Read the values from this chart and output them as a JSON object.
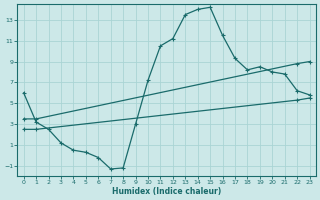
{
  "xlabel": "Humidex (Indice chaleur)",
  "bg_color": "#cce8e8",
  "line_color": "#1a6b6b",
  "grid_color": "#aad4d4",
  "xlim": [
    -0.5,
    23.5
  ],
  "ylim": [
    -2.0,
    14.5
  ],
  "xticks": [
    0,
    1,
    2,
    3,
    4,
    5,
    6,
    7,
    8,
    9,
    10,
    11,
    12,
    13,
    14,
    15,
    16,
    17,
    18,
    19,
    20,
    21,
    22,
    23
  ],
  "yticks": [
    -1,
    1,
    3,
    5,
    7,
    9,
    11,
    13
  ],
  "line1_x": [
    0,
    1,
    2,
    3,
    4,
    5,
    6,
    7,
    8,
    9,
    10,
    11,
    12,
    13,
    14,
    15,
    16,
    17,
    18,
    19,
    20,
    21,
    22,
    23
  ],
  "line1_y": [
    6.0,
    3.2,
    2.5,
    1.2,
    0.5,
    0.3,
    -0.2,
    -1.3,
    -1.2,
    3.0,
    7.2,
    10.5,
    11.2,
    13.5,
    14.0,
    14.2,
    11.5,
    9.3,
    8.2,
    8.5,
    8.0,
    7.8,
    6.2,
    5.8
  ],
  "line2_x": [
    0,
    1,
    22,
    23
  ],
  "line2_y": [
    3.5,
    3.5,
    8.8,
    9.0
  ],
  "line3_x": [
    0,
    1,
    22,
    23
  ],
  "line3_y": [
    2.5,
    2.5,
    5.3,
    5.5
  ]
}
